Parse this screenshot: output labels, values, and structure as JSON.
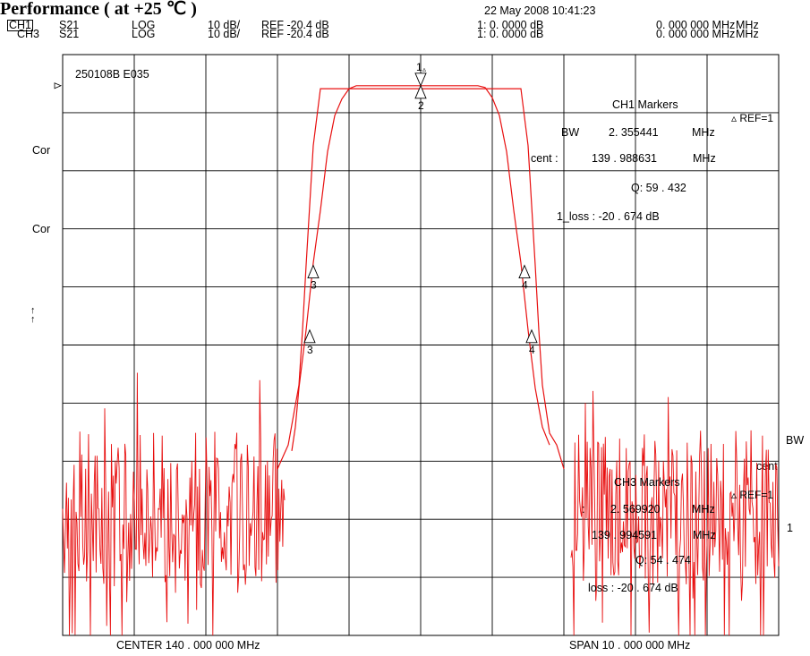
{
  "page_title": "Performance ( at +25 ℃ )",
  "header": {
    "timestamp": "22 May 2008  10:41:23",
    "ch1": {
      "channel": "CH1",
      "param": "S21",
      "format": "LOG",
      "scale": "10 dB/",
      "ref": "REF -20.4 dB",
      "marker_readout": "1: 0. 0000   dB",
      "freq_readout": "0. 000   000   MHz"
    },
    "ch3": {
      "channel": "CH3",
      "param": "S21",
      "format": "LOG",
      "scale": "10 dB/",
      "ref": "REF -20.4 dB",
      "marker_readout": "1: 0. 0000   dB",
      "freq_readout": "0. 000   000   MHz"
    }
  },
  "left_labels": [
    "Cor",
    "Cor",
    "↑",
    "↑"
  ],
  "right_labels": {
    "bw": "BW",
    "cent": "cent",
    "one": "1"
  },
  "ch1_markers": {
    "title": "CH1  Markers",
    "ref": "▵ REF=1",
    "bw_label": "BW",
    "bw_value": "2. 355441",
    "bw_unit": "MHz",
    "cent_label": "cent   :",
    "cent_value": "139 . 988631",
    "cent_unit": "MHz",
    "q": "Q: 59 . 432",
    "loss": "1_loss   :  -20   . 674   dB"
  },
  "ch3_markers": {
    "title": "CH3  Markers",
    "ref": "▵ REF=1",
    "bw_label": ":",
    "bw_value": "2. 569920",
    "bw_unit": "MHz",
    "cent_value": "139 . 994591",
    "cent_unit": "MHz",
    "q": "Q: 54 . 474",
    "loss": "loss   :  -20   . 674   dB"
  },
  "chart_data": {
    "type": "line",
    "annotation": "250108B E035",
    "xlabel_center": "CENTER   140 . 000   000   MHz",
    "xlabel_span": "SPAN     10 . 000   000   MHz",
    "x_center_mhz": 140.0,
    "x_span_mhz": 10.0,
    "xlim": [
      135.0,
      145.0
    ],
    "y_scale_db_per_div": 10,
    "y_ref_db": -20.4,
    "ylim": [
      -91.8,
      5.2
    ],
    "grid": true,
    "series": [
      {
        "channel": "CH1",
        "color": "#e81010",
        "x": [
          138.2,
          138.25,
          138.3,
          138.4,
          138.5,
          138.6,
          138.7,
          138.8,
          138.9,
          139.0,
          139.1,
          139.2,
          139.4,
          139.6,
          139.8,
          140.0,
          140.2,
          140.4,
          140.6,
          140.8,
          140.9,
          141.0,
          141.1,
          141.2,
          141.3,
          141.4,
          141.5,
          141.6,
          141.7,
          141.75,
          141.8
        ],
        "y": [
          -61.0,
          -57.0,
          -50.5,
          -40.8,
          -29.6,
          -20.8,
          -11.0,
          -5.0,
          -2.2,
          -0.5,
          0.0,
          0.0,
          0.0,
          0.0,
          0.0,
          0.0,
          0.0,
          0.0,
          0.0,
          0.0,
          -0.3,
          -2.0,
          -5.0,
          -11.0,
          -20.8,
          -29.6,
          -40.8,
          -50.5,
          -57.0,
          -58.5,
          -60.0
        ]
      },
      {
        "channel": "CH3",
        "color": "#e81010",
        "x": [
          138.0,
          138.15,
          138.3,
          138.35,
          138.4,
          138.5,
          138.6,
          141.4,
          141.5,
          141.6,
          141.65,
          141.7,
          141.8,
          141.9,
          142.0
        ],
        "y": [
          -64.0,
          -60.0,
          -50.0,
          -40.8,
          -30.0,
          -10.0,
          -0.5,
          -0.5,
          -10.0,
          -30.0,
          -40.8,
          -50.0,
          -58.0,
          -60.0,
          -64.0
        ]
      },
      {
        "channel": "CH3-noise",
        "color": "#e81010",
        "x_ranges": [
          [
            135.0,
            138.1
          ],
          [
            142.1,
            145.0
          ]
        ],
        "floor_db": -70.4,
        "spread_db": 13
      }
    ],
    "markers": [
      {
        "label": "1",
        "x_mhz": 140.0,
        "y_db": 0.0,
        "symbol": "▽",
        "delta": "▵"
      },
      {
        "label": "2",
        "x_mhz": 140.0,
        "y_db": 0.0,
        "symbol": "△"
      },
      {
        "label": "3",
        "x_mhz": 138.5,
        "y_db": -30.0,
        "symbol": "△"
      },
      {
        "label": "3",
        "x_mhz": 138.45,
        "y_db": -40.8,
        "symbol": "△"
      },
      {
        "label": "4",
        "x_mhz": 141.45,
        "y_db": -30.0,
        "symbol": "△"
      },
      {
        "label": "4",
        "x_mhz": 141.55,
        "y_db": -40.8,
        "symbol": "△"
      }
    ]
  }
}
